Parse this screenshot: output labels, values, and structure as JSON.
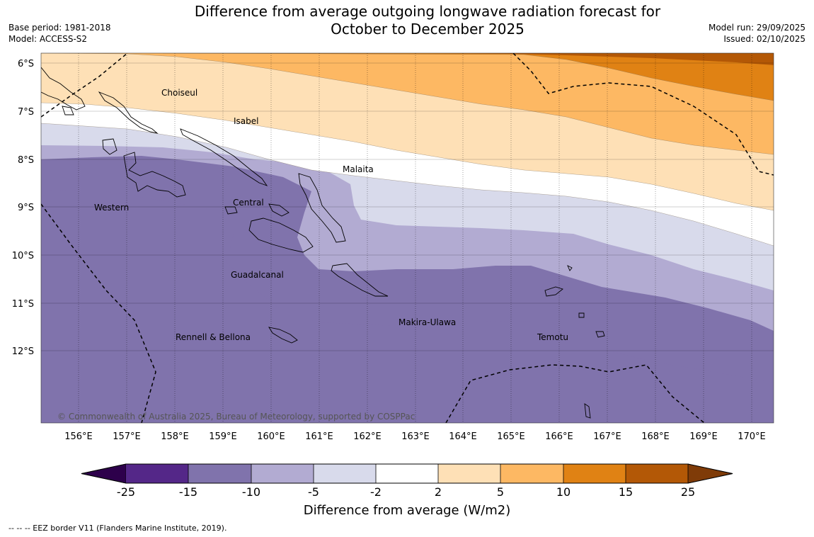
{
  "title": {
    "line1": "Difference from average outgoing longwave radiation forecast for",
    "line2": "October to December 2025"
  },
  "meta": {
    "base_period": "Base period: 1981-2018",
    "model": "Model: ACCESS-S2",
    "model_run": "Model run: 29/09/2025",
    "issued": "Issued: 02/10/2025"
  },
  "map": {
    "lat_labels": [
      "6°S",
      "7°S",
      "8°S",
      "9°S",
      "10°S",
      "11°S",
      "12°S"
    ],
    "lon_labels": [
      "156°E",
      "157°E",
      "158°E",
      "159°E",
      "160°E",
      "161°E",
      "162°E",
      "163°E",
      "164°E",
      "165°E",
      "166°E",
      "167°E",
      "168°E",
      "169°E",
      "170°E"
    ],
    "regions": {
      "choiseul": "Choiseul",
      "isabel": "Isabel",
      "malaita": "Malaita",
      "central": "Central",
      "western": "Western",
      "guadalcanal": "Guadalcanal",
      "makira": "Makira-Ulawa",
      "temotu": "Temotu",
      "rennell": "Rennell & Bellona"
    },
    "copyright": "© Commonwealth of Australia 2025, Bureau of Meteorology, supported by COSPPac"
  },
  "colorbar": {
    "ticks": [
      "-25",
      "-15",
      "-10",
      "-5",
      "-2",
      "2",
      "5",
      "10",
      "15",
      "25"
    ],
    "colors": [
      "#2d004b",
      "#542788",
      "#8073ac",
      "#b2abd2",
      "#d8daeb",
      "#ffffff",
      "#fee0b6",
      "#fdb863",
      "#e08214",
      "#b35806",
      "#7f3b08"
    ],
    "title": "Difference from average (W/m2)"
  },
  "footnote": "--  --  -- EEZ border V11 (Flanders Marine Institute, 2019)."
}
